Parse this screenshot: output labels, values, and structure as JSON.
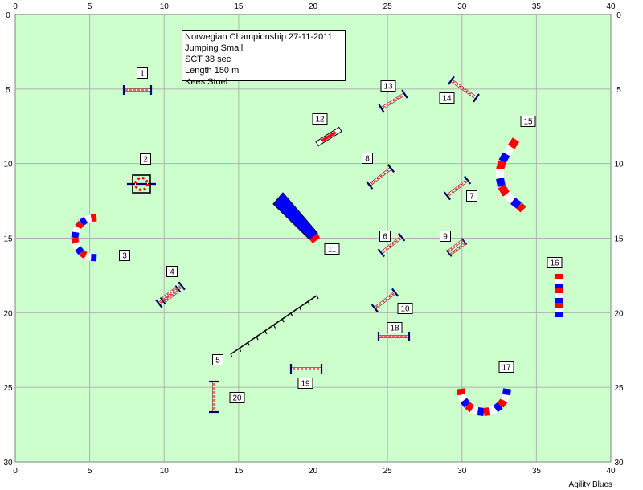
{
  "info_box": {
    "line1": "Norwegian Championship 27-11-2011",
    "line2": "Jumping Small",
    "line3": "SCT 38 sec",
    "line4": "Length 150 m",
    "line5": "Kees Stoel"
  },
  "credit": "Agility Blues",
  "axes": {
    "x_ticks": [
      "0",
      "5",
      "10",
      "15",
      "20",
      "25",
      "30",
      "35",
      "40"
    ],
    "y_ticks": [
      "0",
      "5",
      "10",
      "15",
      "20",
      "25",
      "30"
    ],
    "x_range": [
      0,
      40
    ],
    "y_range": [
      0,
      30
    ]
  },
  "colors": {
    "field": "#ccffcc",
    "grid": "#b0b0b0",
    "blue": "#0000ff",
    "red": "#ff0000",
    "navy": "#000066"
  },
  "obstacle_numbers": [
    "1",
    "2",
    "3",
    "4",
    "5",
    "6",
    "7",
    "8",
    "9",
    "10",
    "11",
    "12",
    "13",
    "14",
    "15",
    "16",
    "17",
    "18",
    "19",
    "20"
  ]
}
